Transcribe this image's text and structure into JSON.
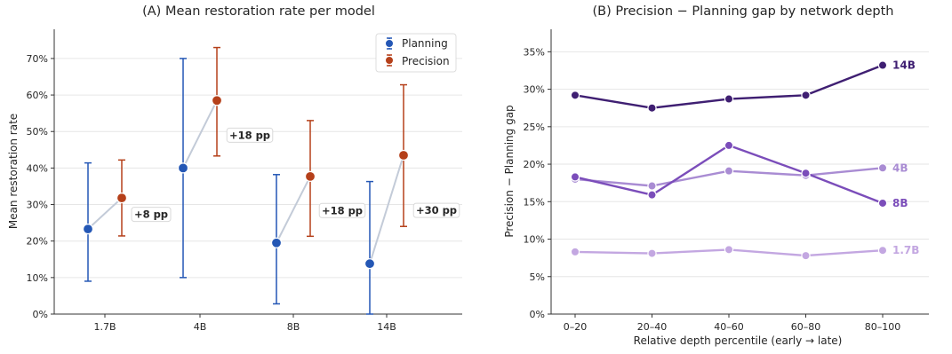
{
  "colors": {
    "planning": "#2457B5",
    "precision": "#B5401A",
    "connector": "#C3CBD8",
    "s14B": "#3F1F72",
    "s8B": "#7B4DBA",
    "s4B": "#A98CD3",
    "s1_7B": "#C3A7E1"
  },
  "chart_data": [
    {
      "type": "scatter",
      "title": "(A)  Mean restoration rate per model",
      "xlabel": "",
      "ylabel": "Mean restoration rate",
      "categories": [
        "1.7B",
        "4B",
        "8B",
        "14B"
      ],
      "ylim": [
        0,
        0.78
      ],
      "yticks": [
        0,
        0.1,
        0.2,
        0.3,
        0.4,
        0.5,
        0.6,
        0.7
      ],
      "ytick_labels": [
        "0%",
        "10%",
        "20%",
        "30%",
        "40%",
        "50%",
        "60%",
        "70%"
      ],
      "grid": "y",
      "legend": "top-right",
      "series": [
        {
          "name": "Planning",
          "values": [
            0.233,
            0.4,
            0.195,
            0.138
          ],
          "err_low": [
            0.09,
            0.1,
            0.028,
            0.0
          ],
          "err_high": [
            0.414,
            0.7,
            0.382,
            0.363
          ]
        },
        {
          "name": "Precision",
          "values": [
            0.318,
            0.585,
            0.377,
            0.435
          ],
          "err_low": [
            0.214,
            0.433,
            0.213,
            0.24
          ],
          "err_high": [
            0.422,
            0.73,
            0.53,
            0.628
          ]
        }
      ],
      "annotations": [
        "+8 pp",
        "+18 pp",
        "+18 pp",
        "+30 pp"
      ]
    },
    {
      "type": "line",
      "title": "(B)  Precision − Planning gap by network depth",
      "xlabel": "Relative depth percentile (early → late)",
      "ylabel": "Precision − Planning gap",
      "categories": [
        "0–20",
        "20–40",
        "40–60",
        "60–80",
        "80–100"
      ],
      "ylim": [
        0,
        0.38
      ],
      "yticks": [
        0,
        0.05,
        0.1,
        0.15,
        0.2,
        0.25,
        0.3,
        0.35
      ],
      "ytick_labels": [
        "0%",
        "5%",
        "10%",
        "15%",
        "20%",
        "25%",
        "30%",
        "35%"
      ],
      "grid": "y",
      "series": [
        {
          "name": "14B",
          "values": [
            0.292,
            0.275,
            0.287,
            0.292,
            0.332
          ]
        },
        {
          "name": "4B",
          "values": [
            0.18,
            0.171,
            0.191,
            0.185,
            0.195
          ]
        },
        {
          "name": "8B",
          "values": [
            0.183,
            0.159,
            0.225,
            0.188,
            0.148
          ]
        },
        {
          "name": "1.7B",
          "values": [
            0.083,
            0.081,
            0.086,
            0.078,
            0.085
          ]
        }
      ]
    }
  ]
}
